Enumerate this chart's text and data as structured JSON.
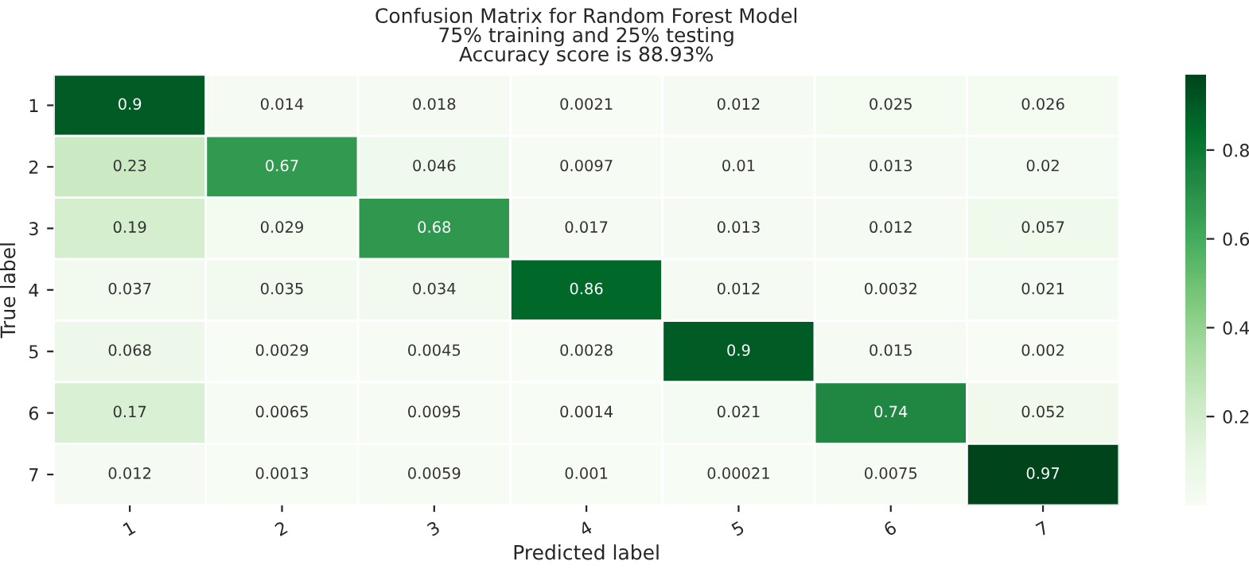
{
  "chart_data": {
    "type": "heatmap",
    "title": "Confusion Matrix for Random Forest Model\n75% training and 25% testing\nAccuracy score is 88.93%",
    "xlabel": "Predicted label",
    "ylabel": "True label",
    "categories": [
      "1",
      "2",
      "3",
      "4",
      "5",
      "6",
      "7"
    ],
    "y_categories": [
      "1",
      "2",
      "3",
      "4",
      "5",
      "6",
      "7"
    ],
    "cells": [
      [
        0.9,
        0.014,
        0.018,
        0.0021,
        0.012,
        0.025,
        0.026
      ],
      [
        0.23,
        0.67,
        0.046,
        0.0097,
        0.01,
        0.013,
        0.02
      ],
      [
        0.19,
        0.029,
        0.68,
        0.017,
        0.013,
        0.012,
        0.057
      ],
      [
        0.037,
        0.035,
        0.034,
        0.86,
        0.012,
        0.0032,
        0.021
      ],
      [
        0.068,
        0.0029,
        0.0045,
        0.0028,
        0.9,
        0.015,
        0.002
      ],
      [
        0.17,
        0.0065,
        0.0095,
        0.0014,
        0.021,
        0.74,
        0.052
      ],
      [
        0.012,
        0.0013,
        0.0059,
        0.001,
        0.00021,
        0.0075,
        0.97
      ]
    ],
    "data_labels": true,
    "clim": [
      0.00021,
      0.97
    ],
    "cticks": [
      0.2,
      0.4,
      0.6,
      0.8
    ]
  }
}
